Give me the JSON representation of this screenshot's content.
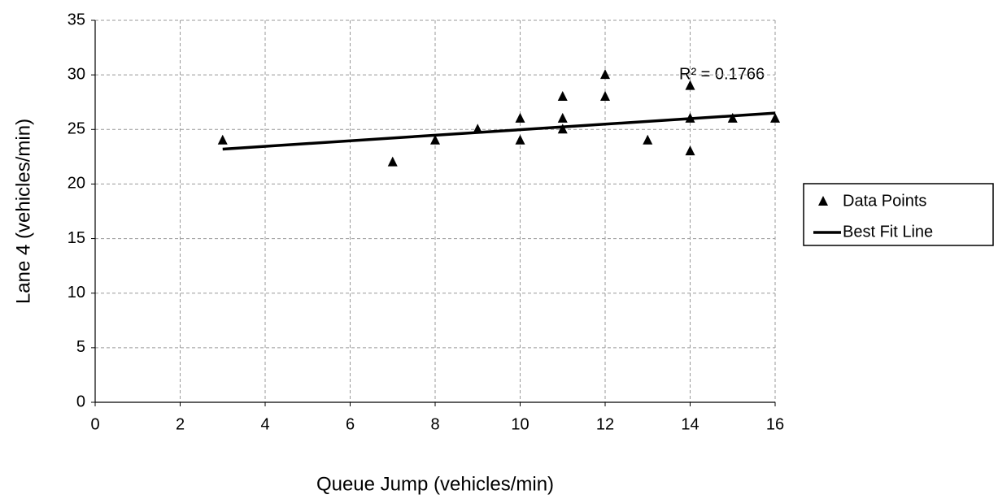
{
  "chart_data": {
    "type": "scatter",
    "x_label": "Queue Jump (vehicles/min)",
    "y_label": "Lane 4 (vehicles/min)",
    "annotation": "R² = 0.1766",
    "series": [
      {
        "name": "Data Points",
        "type": "scatter",
        "marker": "triangle",
        "color": "#000000",
        "x": [
          3,
          7,
          8,
          9,
          10,
          10,
          11,
          11,
          11,
          12,
          12,
          13,
          14,
          14,
          14,
          15,
          16
        ],
        "values": [
          24,
          22,
          24,
          25,
          26,
          24,
          28,
          26,
          25,
          30,
          28,
          24,
          29,
          26,
          23,
          26,
          26
        ]
      },
      {
        "name": "Best Fit Line",
        "type": "line",
        "color": "#000000",
        "x": [
          3,
          16
        ],
        "values": [
          23.2,
          26.5
        ]
      }
    ],
    "xlim": [
      0,
      16
    ],
    "xticks": [
      0,
      2,
      4,
      6,
      8,
      10,
      12,
      14,
      16
    ],
    "ylim": [
      0,
      35
    ],
    "yticks": [
      0,
      5,
      10,
      15,
      20,
      25,
      30,
      35
    ],
    "grid": true,
    "legend": "right"
  }
}
